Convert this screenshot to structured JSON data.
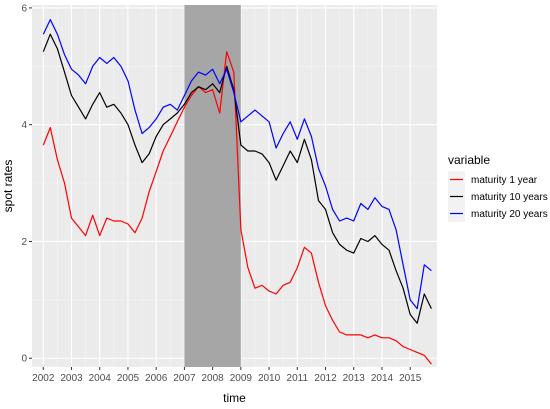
{
  "chart_data": {
    "type": "line",
    "xlabel": "time",
    "ylabel": "spot rates",
    "xlim": [
      2001.6,
      2015.95
    ],
    "ylim": [
      -0.15,
      6.05
    ],
    "x_ticks": [
      2002,
      2003,
      2004,
      2005,
      2006,
      2007,
      2008,
      2009,
      2010,
      2011,
      2012,
      2013,
      2014,
      2015
    ],
    "y_ticks": [
      0,
      2,
      4,
      6
    ],
    "grid": true,
    "shaded_region": {
      "x": [
        2007.0,
        2009.0
      ],
      "color": "#a6a6a6"
    },
    "legend": {
      "title": "variable",
      "placement": "right"
    },
    "x": [
      2002.0,
      2002.25,
      2002.5,
      2002.75,
      2003.0,
      2003.25,
      2003.5,
      2003.75,
      2004.0,
      2004.25,
      2004.5,
      2004.75,
      2005.0,
      2005.25,
      2005.5,
      2005.75,
      2006.0,
      2006.25,
      2006.5,
      2006.75,
      2007.0,
      2007.25,
      2007.5,
      2007.75,
      2008.0,
      2008.25,
      2008.5,
      2008.75,
      2009.0,
      2009.25,
      2009.5,
      2009.75,
      2010.0,
      2010.25,
      2010.5,
      2010.75,
      2011.0,
      2011.25,
      2011.5,
      2011.75,
      2012.0,
      2012.25,
      2012.5,
      2012.75,
      2013.0,
      2013.25,
      2013.5,
      2013.75,
      2014.0,
      2014.25,
      2014.5,
      2014.75,
      2015.0,
      2015.25,
      2015.5,
      2015.75
    ],
    "series": [
      {
        "name": "maturity 1 year",
        "color": "#ff0000",
        "values": [
          3.65,
          3.95,
          3.4,
          3.0,
          2.4,
          2.25,
          2.1,
          2.45,
          2.1,
          2.4,
          2.35,
          2.35,
          2.3,
          2.15,
          2.4,
          2.85,
          3.2,
          3.55,
          3.8,
          4.05,
          4.3,
          4.5,
          4.65,
          4.55,
          4.6,
          4.2,
          5.25,
          4.9,
          2.2,
          1.55,
          1.2,
          1.25,
          1.15,
          1.1,
          1.25,
          1.3,
          1.55,
          1.9,
          1.8,
          1.3,
          0.9,
          0.65,
          0.45,
          0.4,
          0.4,
          0.4,
          0.35,
          0.4,
          0.35,
          0.35,
          0.3,
          0.2,
          0.15,
          0.1,
          0.05,
          -0.1
        ]
      },
      {
        "name": "maturity 10 years",
        "color": "#000000",
        "values": [
          5.25,
          5.55,
          5.3,
          4.9,
          4.5,
          4.3,
          4.1,
          4.35,
          4.55,
          4.3,
          4.35,
          4.2,
          4.0,
          3.65,
          3.35,
          3.5,
          3.8,
          4.0,
          4.1,
          4.2,
          4.35,
          4.55,
          4.65,
          4.6,
          4.7,
          4.55,
          5.0,
          4.6,
          3.65,
          3.55,
          3.55,
          3.5,
          3.35,
          3.05,
          3.3,
          3.55,
          3.35,
          3.75,
          3.4,
          2.7,
          2.55,
          2.15,
          1.95,
          1.85,
          1.8,
          2.05,
          2.0,
          2.1,
          1.95,
          1.85,
          1.5,
          1.2,
          0.75,
          0.6,
          1.1,
          0.85
        ]
      },
      {
        "name": "maturity 20 years",
        "color": "#0000ff",
        "values": [
          5.55,
          5.8,
          5.55,
          5.2,
          4.95,
          4.85,
          4.7,
          5.0,
          5.15,
          5.05,
          5.15,
          5.0,
          4.75,
          4.25,
          3.85,
          3.95,
          4.1,
          4.3,
          4.35,
          4.25,
          4.5,
          4.75,
          4.9,
          4.85,
          4.95,
          4.7,
          4.95,
          4.55,
          4.05,
          4.15,
          4.25,
          4.15,
          4.05,
          3.6,
          3.85,
          4.05,
          3.75,
          4.1,
          3.8,
          3.25,
          2.95,
          2.55,
          2.35,
          2.4,
          2.35,
          2.65,
          2.55,
          2.75,
          2.6,
          2.55,
          2.2,
          1.6,
          1.0,
          0.85,
          1.6,
          1.5
        ]
      }
    ]
  }
}
